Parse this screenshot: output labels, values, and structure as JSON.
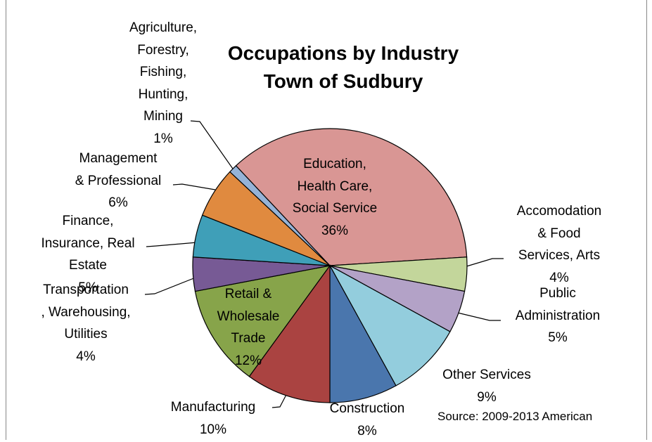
{
  "chart_data": {
    "type": "pie",
    "title": "Occupations by Industry",
    "subtitle": "Town of Sudbury",
    "annotation": "Source: 2009-2013 American",
    "categories": [
      "Education,\nHealth Care,\nSocial Service",
      "Accomodation\n& Food\nServices, Arts",
      "Public\nAdministration",
      "Other Services",
      "Construction",
      "Manufacturing",
      "Retail &\nWholesale\nTrade",
      "Transportation\n, Warehousing,\nUtilities",
      "Finance,\nInsurance, Real\nEstate",
      "Management\n& Professional",
      "Agriculture,\nForestry,\nFishing,\nHunting,\nMining"
    ],
    "values": [
      36,
      4,
      5,
      9,
      8,
      10,
      12,
      4,
      5,
      6,
      1
    ],
    "value_labels": [
      "36%",
      "4%",
      "5%",
      "9%",
      "8%",
      "10%",
      "12%",
      "4%",
      "5%",
      "6%",
      "1%"
    ],
    "colors": [
      "#d99694",
      "#c3d69b",
      "#b3a2c7",
      "#93cddd",
      "#4a76ad",
      "#aa4341",
      "#87a44a",
      "#775a95",
      "#3f9fb8",
      "#e08a3f",
      "#95b3d7"
    ]
  }
}
